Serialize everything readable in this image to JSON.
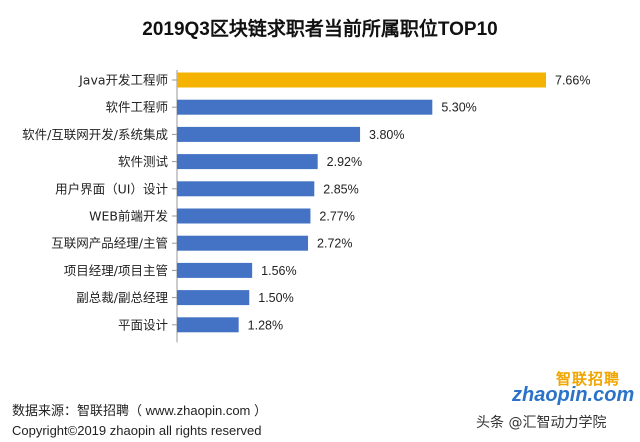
{
  "chart_data": {
    "type": "bar",
    "orientation": "horizontal",
    "title": "2019Q3区块链求职者当前所属职位TOP10",
    "categories": [
      "Java开发工程师",
      "软件工程师",
      "软件/互联网开发/系统集成",
      "软件测试",
      "用户界面（UI）设计",
      "WEB前端开发",
      "互联网产品经理/主管",
      "项目经理/项目主管",
      "副总裁/副总经理",
      "平面设计"
    ],
    "values": [
      7.66,
      5.3,
      3.8,
      2.92,
      2.85,
      2.77,
      2.72,
      1.56,
      1.5,
      1.28
    ],
    "labels": [
      "7.66%",
      "5.30%",
      "3.80%",
      "2.92%",
      "2.85%",
      "2.77%",
      "2.72%",
      "1.56%",
      "1.50%",
      "1.28%"
    ],
    "xlim": [
      0,
      8
    ],
    "xlabel": "",
    "ylabel": "",
    "unit": "%",
    "colors": {
      "highlight": "#f5b301",
      "default": "#4472c4",
      "axis": "#999999"
    }
  },
  "footer": {
    "source": "数据来源：智联招聘（ www.zhaopin.com ）",
    "copyright": "Copyright©2019 zhaopin all rights reserved"
  },
  "logo": {
    "brand_cn": "智联招聘",
    "brand_en": "zhaopin.com"
  },
  "watermark": "头条 @汇智动力学院"
}
